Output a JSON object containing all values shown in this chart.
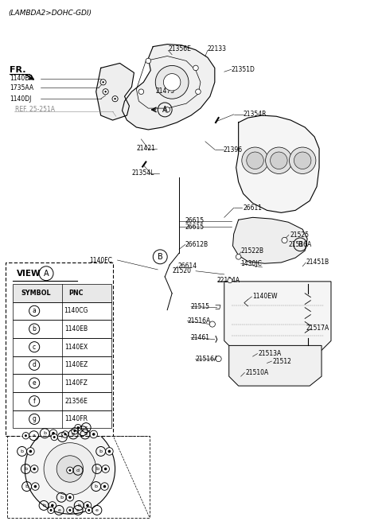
{
  "title": "(LAMBDA2>DOHC-GDI)",
  "bg_color": "#ffffff",
  "line_color": "#000000",
  "gray_color": "#888888",
  "table_rows": [
    [
      "a",
      "1140CG"
    ],
    [
      "b",
      "1140EB"
    ],
    [
      "c",
      "1140EX"
    ],
    [
      "d",
      "1140EZ"
    ],
    [
      "e",
      "1140FZ"
    ],
    [
      "f",
      "21356E"
    ],
    [
      "g",
      "1140FR"
    ]
  ]
}
